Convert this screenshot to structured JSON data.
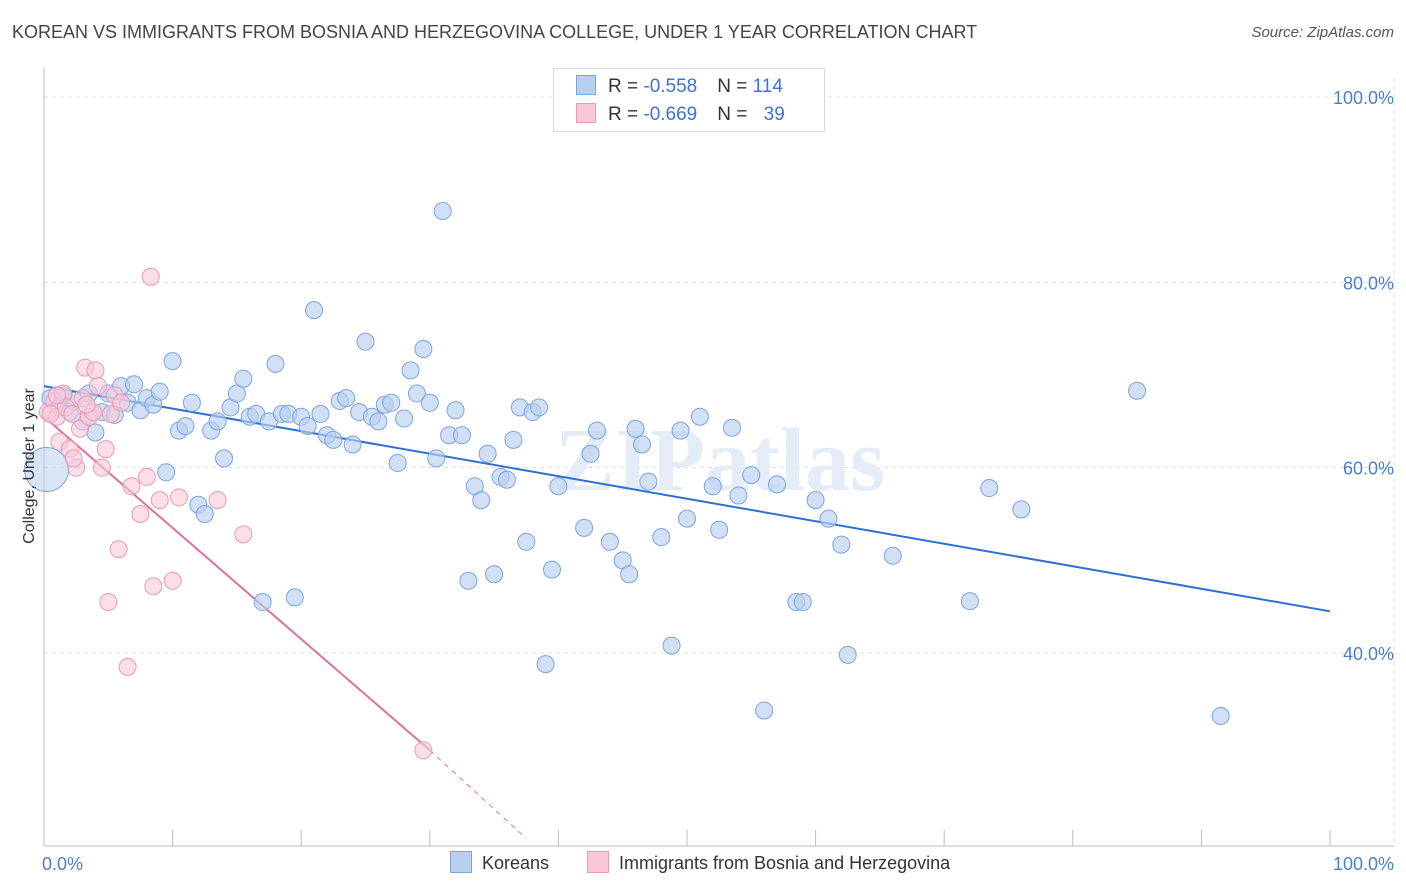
{
  "title": "KOREAN VS IMMIGRANTS FROM BOSNIA AND HERZEGOVINA COLLEGE, UNDER 1 YEAR CORRELATION CHART",
  "source": "Source: ZipAtlas.com",
  "watermark": "ZIPatlas",
  "legend": {
    "rows": [
      {
        "r_label": "R = ",
        "r_value": "-0.558",
        "n_label": "N = ",
        "n_value": "114"
      },
      {
        "r_label": "R = ",
        "r_value": "-0.669",
        "n_label": "N = ",
        "n_value": "39"
      }
    ]
  },
  "colors": {
    "koreans_fill": "#b8d0f0",
    "koreans_stroke": "#7aa5de",
    "koreans_line": "#2f6fd0",
    "bosnia_fill": "#f8c8d8",
    "bosnia_stroke": "#e89ab5",
    "bosnia_line": "#e0709a",
    "grid": "#dddddd",
    "axis_text": "#4a7fd0"
  },
  "chart_data": {
    "type": "scatter",
    "title": "KOREAN VS IMMIGRANTS FROM BOSNIA AND HERZEGOVINA COLLEGE, UNDER 1 YEAR CORRELATION CHART",
    "ylabel": "College, Under 1 year",
    "xlabel": "",
    "x_tick_labels": [
      "0.0%",
      "100.0%"
    ],
    "y_tick_labels": [
      "40.0%",
      "60.0%",
      "80.0%",
      "100.0%"
    ],
    "y_ticks": [
      40,
      60,
      80,
      100
    ],
    "xlim": [
      0,
      100
    ],
    "ylim": [
      20,
      102
    ],
    "grid": true,
    "legend_position": "top-center",
    "series": [
      {
        "name": "Koreans",
        "trend": {
          "x": [
            0,
            100
          ],
          "y": [
            68.8,
            44.5
          ]
        },
        "points": [
          [
            0.5,
            67.5
          ],
          [
            1.2,
            66.5
          ],
          [
            1.5,
            67.8
          ],
          [
            2.0,
            66.0
          ],
          [
            2.3,
            67.2
          ],
          [
            3.0,
            65.0
          ],
          [
            3.5,
            68.0
          ],
          [
            4.0,
            63.8
          ],
          [
            4.5,
            66.0
          ],
          [
            5.0,
            68.0
          ],
          [
            5.5,
            65.7
          ],
          [
            6.0,
            68.8
          ],
          [
            6.5,
            67.0
          ],
          [
            7.0,
            69.0
          ],
          [
            7.5,
            66.2
          ],
          [
            8.0,
            67.5
          ],
          [
            8.5,
            66.8
          ],
          [
            9.0,
            68.2
          ],
          [
            9.5,
            59.5
          ],
          [
            10.0,
            71.5
          ],
          [
            10.5,
            64.0
          ],
          [
            11.0,
            64.5
          ],
          [
            11.5,
            67.0
          ],
          [
            12.0,
            56.0
          ],
          [
            12.5,
            55.0
          ],
          [
            13.0,
            64.0
          ],
          [
            13.5,
            65.0
          ],
          [
            14.0,
            61.0
          ],
          [
            14.5,
            66.5
          ],
          [
            15.0,
            68.0
          ],
          [
            15.5,
            69.6
          ],
          [
            16.0,
            65.5
          ],
          [
            16.5,
            65.8
          ],
          [
            17.0,
            45.5
          ],
          [
            17.5,
            65.0
          ],
          [
            18.0,
            71.2
          ],
          [
            18.5,
            65.8
          ],
          [
            19.0,
            65.8
          ],
          [
            19.5,
            46.0
          ],
          [
            20.0,
            65.5
          ],
          [
            20.5,
            64.5
          ],
          [
            21.0,
            77.0
          ],
          [
            21.5,
            65.8
          ],
          [
            22.0,
            63.5
          ],
          [
            22.5,
            63.0
          ],
          [
            23.0,
            67.2
          ],
          [
            23.5,
            67.5
          ],
          [
            24.0,
            62.5
          ],
          [
            24.5,
            66.0
          ],
          [
            25.0,
            73.6
          ],
          [
            25.5,
            65.5
          ],
          [
            26.0,
            65.0
          ],
          [
            26.5,
            66.8
          ],
          [
            27.0,
            67.0
          ],
          [
            27.5,
            60.5
          ],
          [
            28.0,
            65.3
          ],
          [
            28.5,
            70.5
          ],
          [
            29.0,
            68.0
          ],
          [
            29.5,
            72.8
          ],
          [
            30.0,
            67.0
          ],
          [
            30.5,
            61.0
          ],
          [
            31.0,
            87.7
          ],
          [
            31.5,
            63.5
          ],
          [
            32.0,
            66.2
          ],
          [
            32.5,
            63.5
          ],
          [
            33.0,
            47.8
          ],
          [
            33.5,
            58.0
          ],
          [
            34.0,
            56.5
          ],
          [
            34.5,
            61.5
          ],
          [
            35.0,
            48.5
          ],
          [
            35.5,
            59.0
          ],
          [
            36.0,
            58.7
          ],
          [
            36.5,
            63.0
          ],
          [
            37.0,
            66.5
          ],
          [
            37.5,
            52.0
          ],
          [
            38.0,
            66.0
          ],
          [
            38.5,
            66.5
          ],
          [
            39.0,
            38.8
          ],
          [
            39.5,
            49.0
          ],
          [
            40.0,
            58.0
          ],
          [
            42.0,
            53.5
          ],
          [
            42.5,
            61.5
          ],
          [
            43.0,
            64.0
          ],
          [
            44.0,
            52.0
          ],
          [
            45.0,
            50.0
          ],
          [
            45.5,
            48.5
          ],
          [
            46.0,
            64.2
          ],
          [
            46.5,
            62.5
          ],
          [
            47.0,
            58.5
          ],
          [
            48.0,
            52.5
          ],
          [
            48.8,
            40.8
          ],
          [
            49.5,
            64.0
          ],
          [
            50.0,
            54.5
          ],
          [
            51.0,
            65.5
          ],
          [
            52.0,
            58.0
          ],
          [
            52.5,
            53.3
          ],
          [
            53.5,
            64.3
          ],
          [
            54.0,
            57.0
          ],
          [
            55.0,
            59.2
          ],
          [
            56.0,
            33.8
          ],
          [
            57.0,
            58.2
          ],
          [
            58.5,
            45.5
          ],
          [
            59.0,
            45.5
          ],
          [
            60.0,
            56.5
          ],
          [
            61.0,
            54.5
          ],
          [
            62.0,
            51.7
          ],
          [
            62.5,
            39.8
          ],
          [
            66.0,
            50.5
          ],
          [
            72.0,
            45.6
          ],
          [
            73.5,
            57.8
          ],
          [
            76.0,
            55.5
          ],
          [
            85.0,
            68.3
          ],
          [
            91.5,
            33.2
          ]
        ]
      },
      {
        "name": "Immigrants from Bosnia and Herzegovina",
        "trend": {
          "x": [
            0,
            30
          ],
          "y": [
            65.5,
            29.5
          ]
        },
        "trend_dashed": {
          "x": [
            30,
            37.5
          ],
          "y": [
            29.5,
            20.0
          ]
        },
        "points": [
          [
            0.3,
            66.0
          ],
          [
            0.8,
            67.2
          ],
          [
            1.0,
            65.5
          ],
          [
            1.2,
            62.8
          ],
          [
            1.5,
            68.0
          ],
          [
            1.7,
            66.5
          ],
          [
            2.0,
            62.0
          ],
          [
            2.2,
            65.8
          ],
          [
            2.5,
            60.0
          ],
          [
            2.8,
            64.2
          ],
          [
            3.0,
            67.5
          ],
          [
            3.2,
            70.8
          ],
          [
            3.5,
            65.5
          ],
          [
            3.8,
            66.0
          ],
          [
            4.0,
            70.5
          ],
          [
            4.2,
            68.8
          ],
          [
            4.5,
            60.0
          ],
          [
            4.8,
            62.0
          ],
          [
            5.0,
            45.5
          ],
          [
            5.2,
            65.8
          ],
          [
            5.5,
            67.8
          ],
          [
            5.8,
            51.2
          ],
          [
            6.0,
            67.0
          ],
          [
            6.5,
            38.5
          ],
          [
            6.8,
            58.0
          ],
          [
            7.5,
            55.0
          ],
          [
            8.0,
            59.0
          ],
          [
            8.3,
            80.6
          ],
          [
            8.5,
            47.2
          ],
          [
            9.0,
            56.5
          ],
          [
            10.0,
            47.8
          ],
          [
            10.5,
            56.8
          ],
          [
            13.5,
            56.5
          ],
          [
            15.5,
            52.8
          ],
          [
            29.5,
            29.5
          ],
          [
            2.3,
            61.0
          ],
          [
            1.0,
            67.8
          ],
          [
            0.5,
            65.8
          ],
          [
            3.3,
            66.8
          ]
        ]
      }
    ],
    "big_point": {
      "series": "Koreans",
      "x": 0.2,
      "y": 59.8
    }
  },
  "bottom_legend": {
    "koreans": "Koreans",
    "bosnia": "Immigrants from Bosnia and Herzegovina"
  }
}
